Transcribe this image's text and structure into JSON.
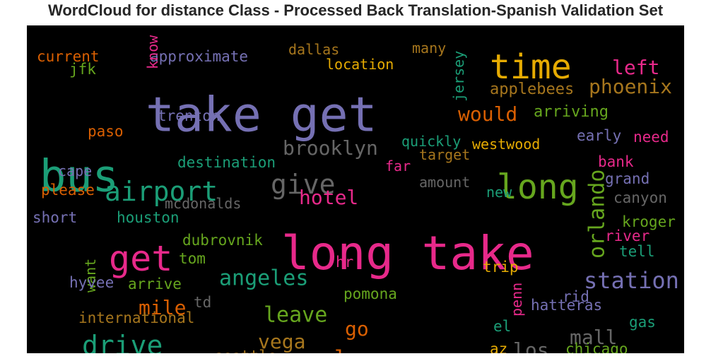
{
  "chart_data": {
    "type": "wordcloud",
    "title": "WordCloud for distance Class - Processed Back Translation-Spanish Validation Set",
    "background": "#000000",
    "words": [
      {
        "text": "take get",
        "color": "#7570b3",
        "rotated": false
      },
      {
        "text": "long take",
        "color": "#e7298a",
        "rotated": false
      },
      {
        "text": "time",
        "color": "#e6ab02",
        "rotated": false
      },
      {
        "text": "bus",
        "color": "#1b9e77",
        "rotated": false
      },
      {
        "text": "get",
        "color": "#e7298a",
        "rotated": false
      },
      {
        "text": "long",
        "color": "#66a61e",
        "rotated": false
      },
      {
        "text": "airport",
        "color": "#1b9e77",
        "rotated": false
      },
      {
        "text": "give",
        "color": "#666666",
        "rotated": false
      },
      {
        "text": "drive",
        "color": "#1b9e77",
        "rotated": false
      },
      {
        "text": "station",
        "color": "#7570b3",
        "rotated": false
      },
      {
        "text": "orlando",
        "color": "#66a61e",
        "rotated": true
      },
      {
        "text": "brooklyn",
        "color": "#666666",
        "rotated": false
      },
      {
        "text": "phoenix",
        "color": "#a6761d",
        "rotated": false
      },
      {
        "text": "left",
        "color": "#e7298a",
        "rotated": false
      },
      {
        "text": "would",
        "color": "#d95f02",
        "rotated": false
      },
      {
        "text": "angeles",
        "color": "#1b9e77",
        "rotated": false
      },
      {
        "text": "hotel",
        "color": "#e7298a",
        "rotated": false
      },
      {
        "text": "leave",
        "color": "#66a61e",
        "rotated": false
      },
      {
        "text": "mall",
        "color": "#666666",
        "rotated": false
      },
      {
        "text": "vega",
        "color": "#a6761d",
        "rotated": false
      },
      {
        "text": "mile",
        "color": "#d95f02",
        "rotated": false
      },
      {
        "text": "go",
        "color": "#d95f02",
        "rotated": false
      },
      {
        "text": "la",
        "color": "#d95f02",
        "rotated": false
      },
      {
        "text": "los",
        "color": "#666666",
        "rotated": false
      },
      {
        "text": "applebees",
        "color": "#a6761d",
        "rotated": false
      },
      {
        "text": "arriving",
        "color": "#66a61e",
        "rotated": false
      },
      {
        "text": "approximate",
        "color": "#7570b3",
        "rotated": false
      },
      {
        "text": "location",
        "color": "#e6ab02",
        "rotated": false
      },
      {
        "text": "dallas",
        "color": "#a6761d",
        "rotated": false
      },
      {
        "text": "many",
        "color": "#a6761d",
        "rotated": false
      },
      {
        "text": "jersey",
        "color": "#1b9e77",
        "rotated": true
      },
      {
        "text": "know",
        "color": "#e7298a",
        "rotated": true
      },
      {
        "text": "current",
        "color": "#d95f02",
        "rotated": false
      },
      {
        "text": "jfk",
        "color": "#66a61e",
        "rotated": false
      },
      {
        "text": "trenton",
        "color": "#7570b3",
        "rotated": false
      },
      {
        "text": "paso",
        "color": "#d95f02",
        "rotated": false
      },
      {
        "text": "quickly",
        "color": "#1b9e77",
        "rotated": false
      },
      {
        "text": "westwood",
        "color": "#e6ab02",
        "rotated": false
      },
      {
        "text": "early",
        "color": "#7570b3",
        "rotated": false
      },
      {
        "text": "need",
        "color": "#e7298a",
        "rotated": false
      },
      {
        "text": "destination",
        "color": "#1b9e77",
        "rotated": false
      },
      {
        "text": "target",
        "color": "#a6761d",
        "rotated": false
      },
      {
        "text": "far",
        "color": "#e7298a",
        "rotated": false
      },
      {
        "text": "bank",
        "color": "#e7298a",
        "rotated": false
      },
      {
        "text": "cape",
        "color": "#7570b3",
        "rotated": false
      },
      {
        "text": "please",
        "color": "#d95f02",
        "rotated": false
      },
      {
        "text": "amount",
        "color": "#666666",
        "rotated": false
      },
      {
        "text": "grand",
        "color": "#7570b3",
        "rotated": false
      },
      {
        "text": "new",
        "color": "#1b9e77",
        "rotated": false
      },
      {
        "text": "mcdonalds",
        "color": "#666666",
        "rotated": false
      },
      {
        "text": "canyon",
        "color": "#666666",
        "rotated": false
      },
      {
        "text": "short",
        "color": "#7570b3",
        "rotated": false
      },
      {
        "text": "houston",
        "color": "#1b9e77",
        "rotated": false
      },
      {
        "text": "kroger",
        "color": "#66a61e",
        "rotated": false
      },
      {
        "text": "dubrovnik",
        "color": "#66a61e",
        "rotated": false
      },
      {
        "text": "river",
        "color": "#e7298a",
        "rotated": false
      },
      {
        "text": "tom",
        "color": "#66a61e",
        "rotated": false
      },
      {
        "text": "tell",
        "color": "#1b9e77",
        "rotated": false
      },
      {
        "text": "hr",
        "color": "#e7298a",
        "rotated": false
      },
      {
        "text": "trip",
        "color": "#e6ab02",
        "rotated": false
      },
      {
        "text": "want",
        "color": "#66a61e",
        "rotated": true
      },
      {
        "text": "hyvee",
        "color": "#7570b3",
        "rotated": false
      },
      {
        "text": "arrive",
        "color": "#66a61e",
        "rotated": false
      },
      {
        "text": "rid",
        "color": "#7570b3",
        "rotated": false
      },
      {
        "text": "pomona",
        "color": "#66a61e",
        "rotated": false
      },
      {
        "text": "td",
        "color": "#666666",
        "rotated": false
      },
      {
        "text": "international",
        "color": "#a6761d",
        "rotated": false
      },
      {
        "text": "hatteras",
        "color": "#7570b3",
        "rotated": false
      },
      {
        "text": "penn",
        "color": "#e7298a",
        "rotated": true
      },
      {
        "text": "gas",
        "color": "#1b9e77",
        "rotated": false
      },
      {
        "text": "el",
        "color": "#1b9e77",
        "rotated": false
      },
      {
        "text": "az",
        "color": "#e6ab02",
        "rotated": false
      },
      {
        "text": "chicago",
        "color": "#66a61e",
        "rotated": false
      },
      {
        "text": "seattle",
        "color": "#a6761d",
        "rotated": false
      }
    ]
  }
}
